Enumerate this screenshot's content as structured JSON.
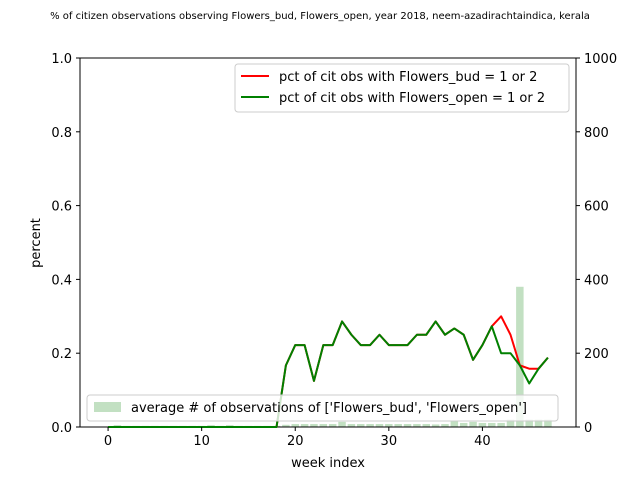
{
  "chart_data": {
    "type": "line",
    "title": "% of citizen observations observing Flowers_bud, Flowers_open, year 2018, neem-azadirachtaindica, kerala",
    "xlabel": "week index",
    "ylabel": "percent",
    "xlim": [
      -3,
      50
    ],
    "ylim": [
      0,
      1.0
    ],
    "y2lim": [
      0,
      1000
    ],
    "x_ticks": [
      0,
      10,
      20,
      30,
      40
    ],
    "y_ticks": [
      0.0,
      0.2,
      0.4,
      0.6,
      0.8,
      1.0
    ],
    "y2_ticks": [
      0,
      200,
      400,
      600,
      800,
      1000
    ],
    "legend_placement": "top-right",
    "bar_legend_placement": "bottom-left",
    "colors": {
      "bud": "#ff0000",
      "open": "#008000",
      "bars": "#c2e0c2"
    },
    "series": [
      {
        "name": "pct of cit obs with Flowers_bud = 1 or 2",
        "color": "#ff0000",
        "x": [
          0,
          1,
          2,
          3,
          4,
          5,
          6,
          7,
          8,
          9,
          10,
          11,
          12,
          13,
          14,
          15,
          16,
          17,
          18,
          19,
          20,
          21,
          22,
          23,
          24,
          25,
          26,
          27,
          28,
          29,
          30,
          31,
          32,
          33,
          34,
          35,
          36,
          37,
          38,
          39,
          40,
          41,
          42,
          43,
          44,
          45,
          46,
          47
        ],
        "values": [
          0,
          0,
          0,
          0,
          0,
          0,
          0,
          0,
          0,
          0,
          0,
          0,
          0,
          0,
          0,
          0,
          0,
          0,
          0,
          0.167,
          0.222,
          0.222,
          0.125,
          0.222,
          0.222,
          0.286,
          0.25,
          0.222,
          0.222,
          0.25,
          0.222,
          0.222,
          0.222,
          0.25,
          0.25,
          0.286,
          0.25,
          0.267,
          0.25,
          0.182,
          0.222,
          0.273,
          0.3,
          0.25,
          0.167,
          0.158,
          0.158,
          0.188
        ]
      },
      {
        "name": "pct of cit obs with Flowers_open = 1 or 2",
        "color": "#008000",
        "x": [
          0,
          1,
          2,
          3,
          4,
          5,
          6,
          7,
          8,
          9,
          10,
          11,
          12,
          13,
          14,
          15,
          16,
          17,
          18,
          19,
          20,
          21,
          22,
          23,
          24,
          25,
          26,
          27,
          28,
          29,
          30,
          31,
          32,
          33,
          34,
          35,
          36,
          37,
          38,
          39,
          40,
          41,
          42,
          43,
          44,
          45,
          46,
          47
        ],
        "values": [
          0,
          0,
          0,
          0,
          0,
          0,
          0,
          0,
          0,
          0,
          0,
          0,
          0,
          0,
          0,
          0,
          0,
          0,
          0,
          0.167,
          0.222,
          0.222,
          0.125,
          0.222,
          0.222,
          0.286,
          0.25,
          0.222,
          0.222,
          0.25,
          0.222,
          0.222,
          0.222,
          0.25,
          0.25,
          0.286,
          0.25,
          0.267,
          0.25,
          0.182,
          0.222,
          0.273,
          0.2,
          0.2,
          0.167,
          0.118,
          0.158,
          0.188
        ]
      }
    ],
    "bar_series": {
      "name": "average # of observations of ['Flowers_bud', 'Flowers_open']",
      "color": "#c2e0c2",
      "x": [
        0,
        1,
        2,
        3,
        4,
        5,
        6,
        7,
        8,
        9,
        10,
        11,
        12,
        13,
        14,
        15,
        16,
        17,
        18,
        19,
        20,
        21,
        22,
        23,
        24,
        25,
        26,
        27,
        28,
        29,
        30,
        31,
        32,
        33,
        34,
        35,
        36,
        37,
        38,
        39,
        40,
        41,
        42,
        43,
        44,
        45,
        46,
        47
      ],
      "values": [
        0,
        5,
        3,
        3,
        3,
        3,
        3,
        3,
        3,
        3,
        3,
        5,
        3,
        5,
        3,
        3,
        3,
        3,
        3,
        6,
        8,
        8,
        8,
        8,
        8,
        14,
        8,
        8,
        8,
        8,
        8,
        8,
        8,
        8,
        8,
        7,
        8,
        15,
        11,
        14,
        11,
        11,
        11,
        20,
        380,
        20,
        20,
        20
      ]
    }
  }
}
